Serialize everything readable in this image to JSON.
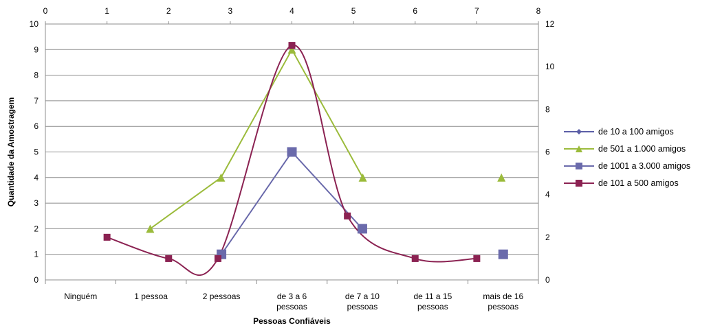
{
  "chart_data": {
    "type": "line",
    "xlabel": "Pessoas Confiáveis",
    "ylabel": "Quantidade da Amostragem",
    "categories": [
      [
        "Ninguém"
      ],
      [
        "1 pessoa"
      ],
      [
        "2 pessoas"
      ],
      [
        "de 3 a 6",
        "pessoas"
      ],
      [
        "de 7 a 10",
        "pessoas"
      ],
      [
        "de 11 a 15",
        "pessoas"
      ],
      [
        "mais de 16",
        "pessoas"
      ]
    ],
    "y_left": {
      "min": 0,
      "max": 10,
      "ticks": [
        "0",
        "1",
        "2",
        "3",
        "4",
        "5",
        "6",
        "7",
        "8",
        "9",
        "10"
      ]
    },
    "y_right": {
      "min": 0,
      "max": 12,
      "ticks": [
        "0",
        "2",
        "4",
        "6",
        "8",
        "10",
        "12"
      ]
    },
    "x_top": {
      "min": 0,
      "max": 8,
      "ticks": [
        "0",
        "1",
        "2",
        "3",
        "4",
        "5",
        "6",
        "7",
        "8"
      ]
    },
    "grid": true,
    "legend_position": "right",
    "series": [
      {
        "name": "de 10 a 100 amigos",
        "color": "#5b5ea6",
        "marker": "diamond",
        "axis": "secondary-top",
        "points": []
      },
      {
        "name": "de 501 a 1.000  amigos",
        "color": "#9bbb3b",
        "marker": "triangle",
        "axis": "secondary-top",
        "line": "straight",
        "points": [
          [
            1.7,
            2.4
          ],
          [
            2.85,
            4.8
          ],
          [
            4.0,
            10.8
          ],
          [
            5.15,
            4.8
          ]
        ],
        "isolated_points": [
          [
            7.4,
            4.8
          ]
        ]
      },
      {
        "name": "de 1001 a 3.000 amigos",
        "color": "#6a6aab",
        "marker": "square",
        "axis": "primary",
        "line": "straight",
        "points": [
          [
            2.5,
            1
          ],
          [
            3.5,
            5
          ],
          [
            4.5,
            2
          ]
        ],
        "isolated_points": [
          [
            6.5,
            1
          ]
        ]
      },
      {
        "name": "de 101 a 500  amigos",
        "color": "#8b2252",
        "marker": "square",
        "axis": "secondary-top",
        "line": "smooth",
        "points": [
          [
            1,
            2
          ],
          [
            2,
            1
          ],
          [
            2.8,
            1
          ],
          [
            4,
            11
          ],
          [
            4.9,
            3
          ],
          [
            6,
            1
          ],
          [
            7,
            1
          ]
        ]
      }
    ]
  }
}
